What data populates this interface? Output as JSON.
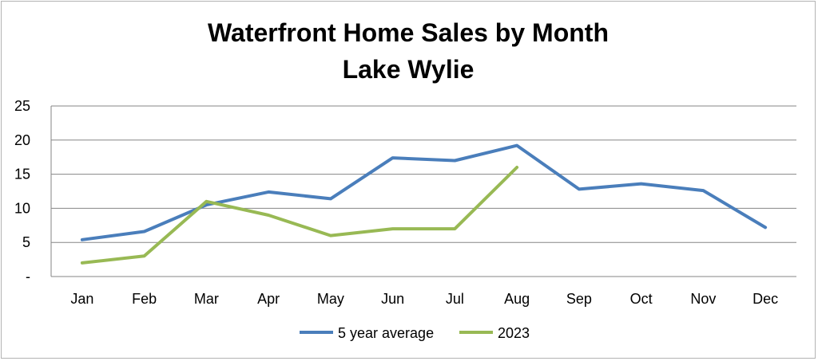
{
  "chart_data": {
    "type": "line",
    "title": "Waterfront Home Sales by Month",
    "subtitle": "Lake Wylie",
    "categories": [
      "Jan",
      "Feb",
      "Mar",
      "Apr",
      "May",
      "Jun",
      "Jul",
      "Aug",
      "Sep",
      "Oct",
      "Nov",
      "Dec"
    ],
    "y_tick_labels": [
      "-",
      "5",
      "10",
      "15",
      "20",
      "25"
    ],
    "ylim": [
      0,
      25
    ],
    "grid": true,
    "legend_position": "bottom",
    "series": [
      {
        "name": "5 year average",
        "color": "#4a7ebb",
        "values": [
          5.4,
          6.6,
          10.5,
          12.4,
          11.4,
          17.4,
          17.0,
          19.2,
          12.8,
          13.6,
          12.6,
          7.2
        ]
      },
      {
        "name": "2023",
        "color": "#98b954",
        "values": [
          2,
          3,
          11,
          9,
          6,
          7,
          7,
          16,
          null,
          null,
          null,
          null
        ]
      }
    ]
  }
}
